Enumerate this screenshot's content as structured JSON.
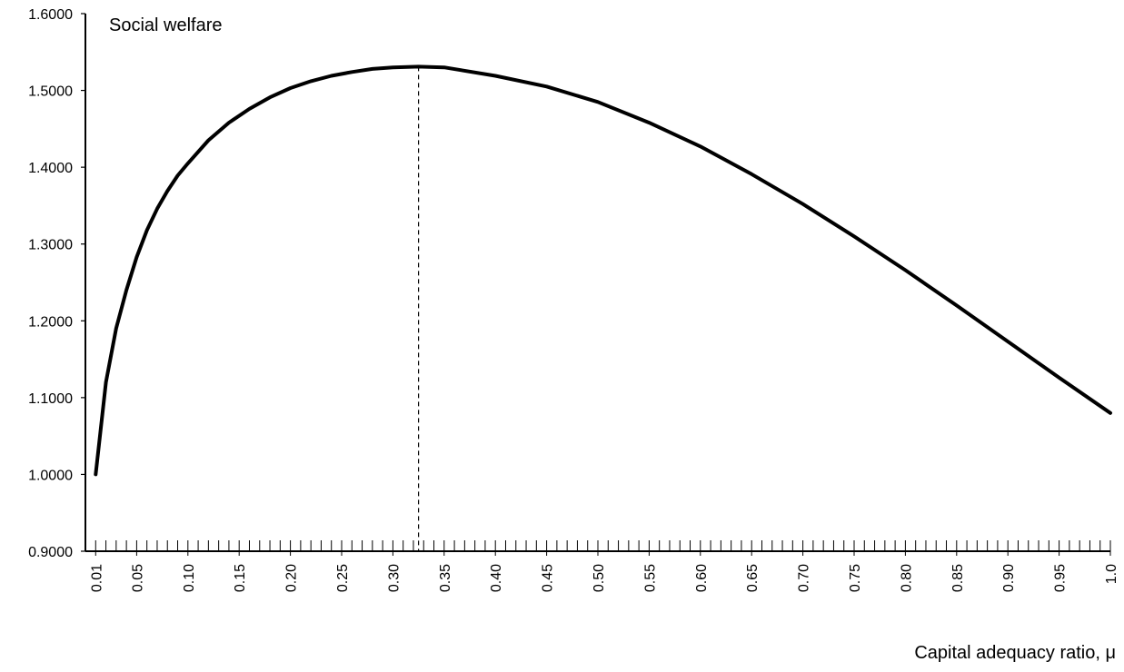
{
  "chart_data": {
    "type": "line",
    "title": "Social welfare",
    "xlabel": "Capital adequacy ratio, μ",
    "ylabel": "",
    "xlim": [
      0.0,
      1.0
    ],
    "ylim": [
      0.9,
      1.6
    ],
    "y_ticks": [
      "0.9000",
      "1.0000",
      "1.1000",
      "1.2000",
      "1.3000",
      "1.4000",
      "1.5000",
      "1.6000"
    ],
    "x_ticks": [
      "0.01",
      "0.05",
      "0.10",
      "0.15",
      "0.20",
      "0.25",
      "0.30",
      "0.35",
      "0.40",
      "0.45",
      "0.50",
      "0.55",
      "0.60",
      "0.65",
      "0.70",
      "0.75",
      "0.80",
      "0.85",
      "0.90",
      "0.95",
      "1.0"
    ],
    "optimum_marker": {
      "x": 0.325,
      "style": "dashed"
    },
    "grid": false,
    "series": [
      {
        "color": "#000000",
        "x": [
          0.01,
          0.02,
          0.03,
          0.04,
          0.05,
          0.06,
          0.07,
          0.08,
          0.09,
          0.1,
          0.12,
          0.14,
          0.16,
          0.18,
          0.2,
          0.22,
          0.24,
          0.26,
          0.28,
          0.3,
          0.325,
          0.35,
          0.4,
          0.45,
          0.5,
          0.55,
          0.6,
          0.65,
          0.7,
          0.75,
          0.8,
          0.85,
          0.9,
          0.95,
          1.0
        ],
        "y": [
          1.0,
          1.12,
          1.19,
          1.24,
          1.283,
          1.318,
          1.346,
          1.369,
          1.389,
          1.405,
          1.435,
          1.458,
          1.476,
          1.491,
          1.503,
          1.512,
          1.519,
          1.524,
          1.528,
          1.53,
          1.531,
          1.53,
          1.519,
          1.505,
          1.485,
          1.458,
          1.427,
          1.391,
          1.352,
          1.31,
          1.266,
          1.22,
          1.173,
          1.126,
          1.08
        ]
      }
    ]
  }
}
